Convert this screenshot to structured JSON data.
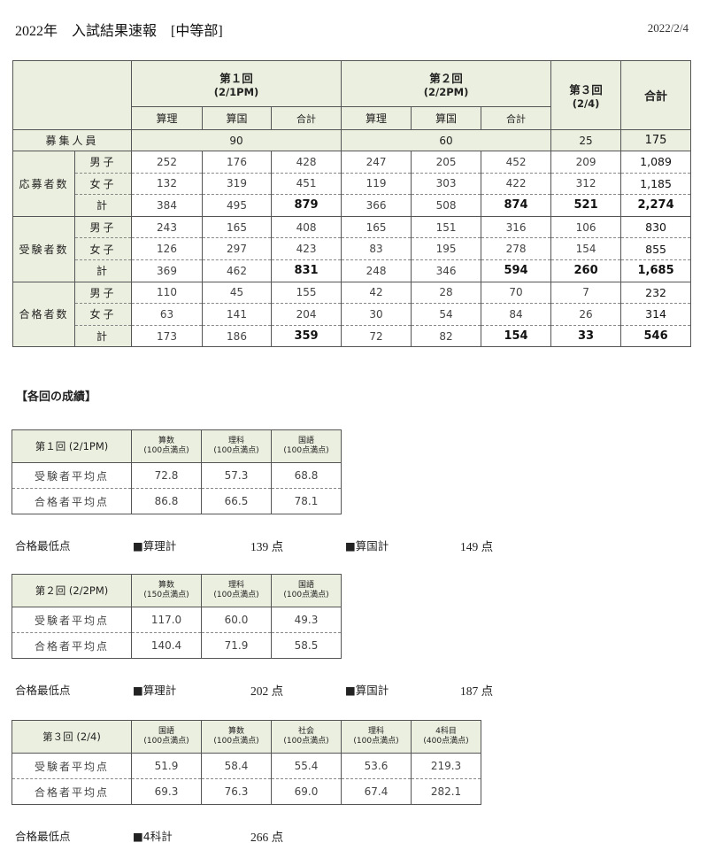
{
  "header": {
    "title": "2022年　入試結果速報　[中等部]",
    "date": "2022/2/4"
  },
  "main": {
    "round1": {
      "name": "第１回",
      "date": "(2/1PM)"
    },
    "round2": {
      "name": "第２回",
      "date": "(2/2PM)"
    },
    "round3": {
      "name": "第３回",
      "date": "(2/4)"
    },
    "total_header": "合計",
    "subcols": [
      "算理",
      "算国",
      "合計",
      "算理",
      "算国",
      "合計"
    ],
    "capacity": {
      "label": "募集人員",
      "round1": "90",
      "round2": "60",
      "round3": "25",
      "total": "175"
    },
    "groups": [
      {
        "label": "応募者数",
        "rows": [
          {
            "sub": "男子",
            "values": [
              "252",
              "176",
              "428",
              "247",
              "205",
              "452",
              "209",
              "1,089"
            ]
          },
          {
            "sub": "女子",
            "values": [
              "132",
              "319",
              "451",
              "119",
              "303",
              "422",
              "312",
              "1,185"
            ]
          },
          {
            "sub": "計",
            "values": [
              "384",
              "495",
              "879",
              "366",
              "508",
              "874",
              "521",
              "2,274"
            ]
          }
        ]
      },
      {
        "label": "受験者数",
        "rows": [
          {
            "sub": "男子",
            "values": [
              "243",
              "165",
              "408",
              "165",
              "151",
              "316",
              "106",
              "830"
            ]
          },
          {
            "sub": "女子",
            "values": [
              "126",
              "297",
              "423",
              "83",
              "195",
              "278",
              "154",
              "855"
            ]
          },
          {
            "sub": "計",
            "values": [
              "369",
              "462",
              "831",
              "248",
              "346",
              "594",
              "260",
              "1,685"
            ]
          }
        ]
      },
      {
        "label": "合格者数",
        "rows": [
          {
            "sub": "男子",
            "values": [
              "110",
              "45",
              "155",
              "42",
              "28",
              "70",
              "7",
              "232"
            ]
          },
          {
            "sub": "女子",
            "values": [
              "63",
              "141",
              "204",
              "30",
              "54",
              "84",
              "26",
              "314"
            ]
          },
          {
            "sub": "計",
            "values": [
              "173",
              "186",
              "359",
              "72",
              "82",
              "154",
              "33",
              "546"
            ]
          }
        ]
      }
    ]
  },
  "section_title": "【各回の成績】",
  "scores": [
    {
      "title": "第１回 (2/1PM)",
      "subjects": [
        {
          "name": "算数",
          "max": "(100点満点)"
        },
        {
          "name": "理科",
          "max": "(100点満点)"
        },
        {
          "name": "国語",
          "max": "(100点満点)"
        }
      ],
      "rows": [
        {
          "label": "受験者平均点",
          "values": [
            "72.8",
            "57.3",
            "68.8"
          ]
        },
        {
          "label": "合格者平均点",
          "values": [
            "86.8",
            "66.5",
            "78.1"
          ]
        }
      ],
      "min": {
        "label": "合格最低点",
        "items": [
          {
            "name": "■算理計",
            "value": "139 点"
          },
          {
            "name": "■算国計",
            "value": "149 点"
          }
        ]
      }
    },
    {
      "title": "第２回 (2/2PM)",
      "subjects": [
        {
          "name": "算数",
          "max": "(150点満点)"
        },
        {
          "name": "理科",
          "max": "(100点満点)"
        },
        {
          "name": "国語",
          "max": "(100点満点)"
        }
      ],
      "rows": [
        {
          "label": "受験者平均点",
          "values": [
            "117.0",
            "60.0",
            "49.3"
          ]
        },
        {
          "label": "合格者平均点",
          "values": [
            "140.4",
            "71.9",
            "58.5"
          ]
        }
      ],
      "min": {
        "label": "合格最低点",
        "items": [
          {
            "name": "■算理計",
            "value": "202 点"
          },
          {
            "name": "■算国計",
            "value": "187 点"
          }
        ]
      }
    },
    {
      "title": "第３回 (2/4)",
      "subjects": [
        {
          "name": "国語",
          "max": "(100点満点)"
        },
        {
          "name": "算数",
          "max": "(100点満点)"
        },
        {
          "name": "社会",
          "max": "(100点満点)"
        },
        {
          "name": "理科",
          "max": "(100点満点)"
        },
        {
          "name": "4科目",
          "max": "(400点満点)"
        }
      ],
      "rows": [
        {
          "label": "受験者平均点",
          "values": [
            "51.9",
            "58.4",
            "55.4",
            "53.6",
            "219.3"
          ]
        },
        {
          "label": "合格者平均点",
          "values": [
            "69.3",
            "76.3",
            "69.0",
            "67.4",
            "282.1"
          ]
        }
      ],
      "min": {
        "label": "合格最低点",
        "items": [
          {
            "name": "■4科計",
            "value": "266 点"
          }
        ]
      }
    }
  ],
  "colors": {
    "header_bg": "#ebefdf",
    "border": "#555555"
  }
}
